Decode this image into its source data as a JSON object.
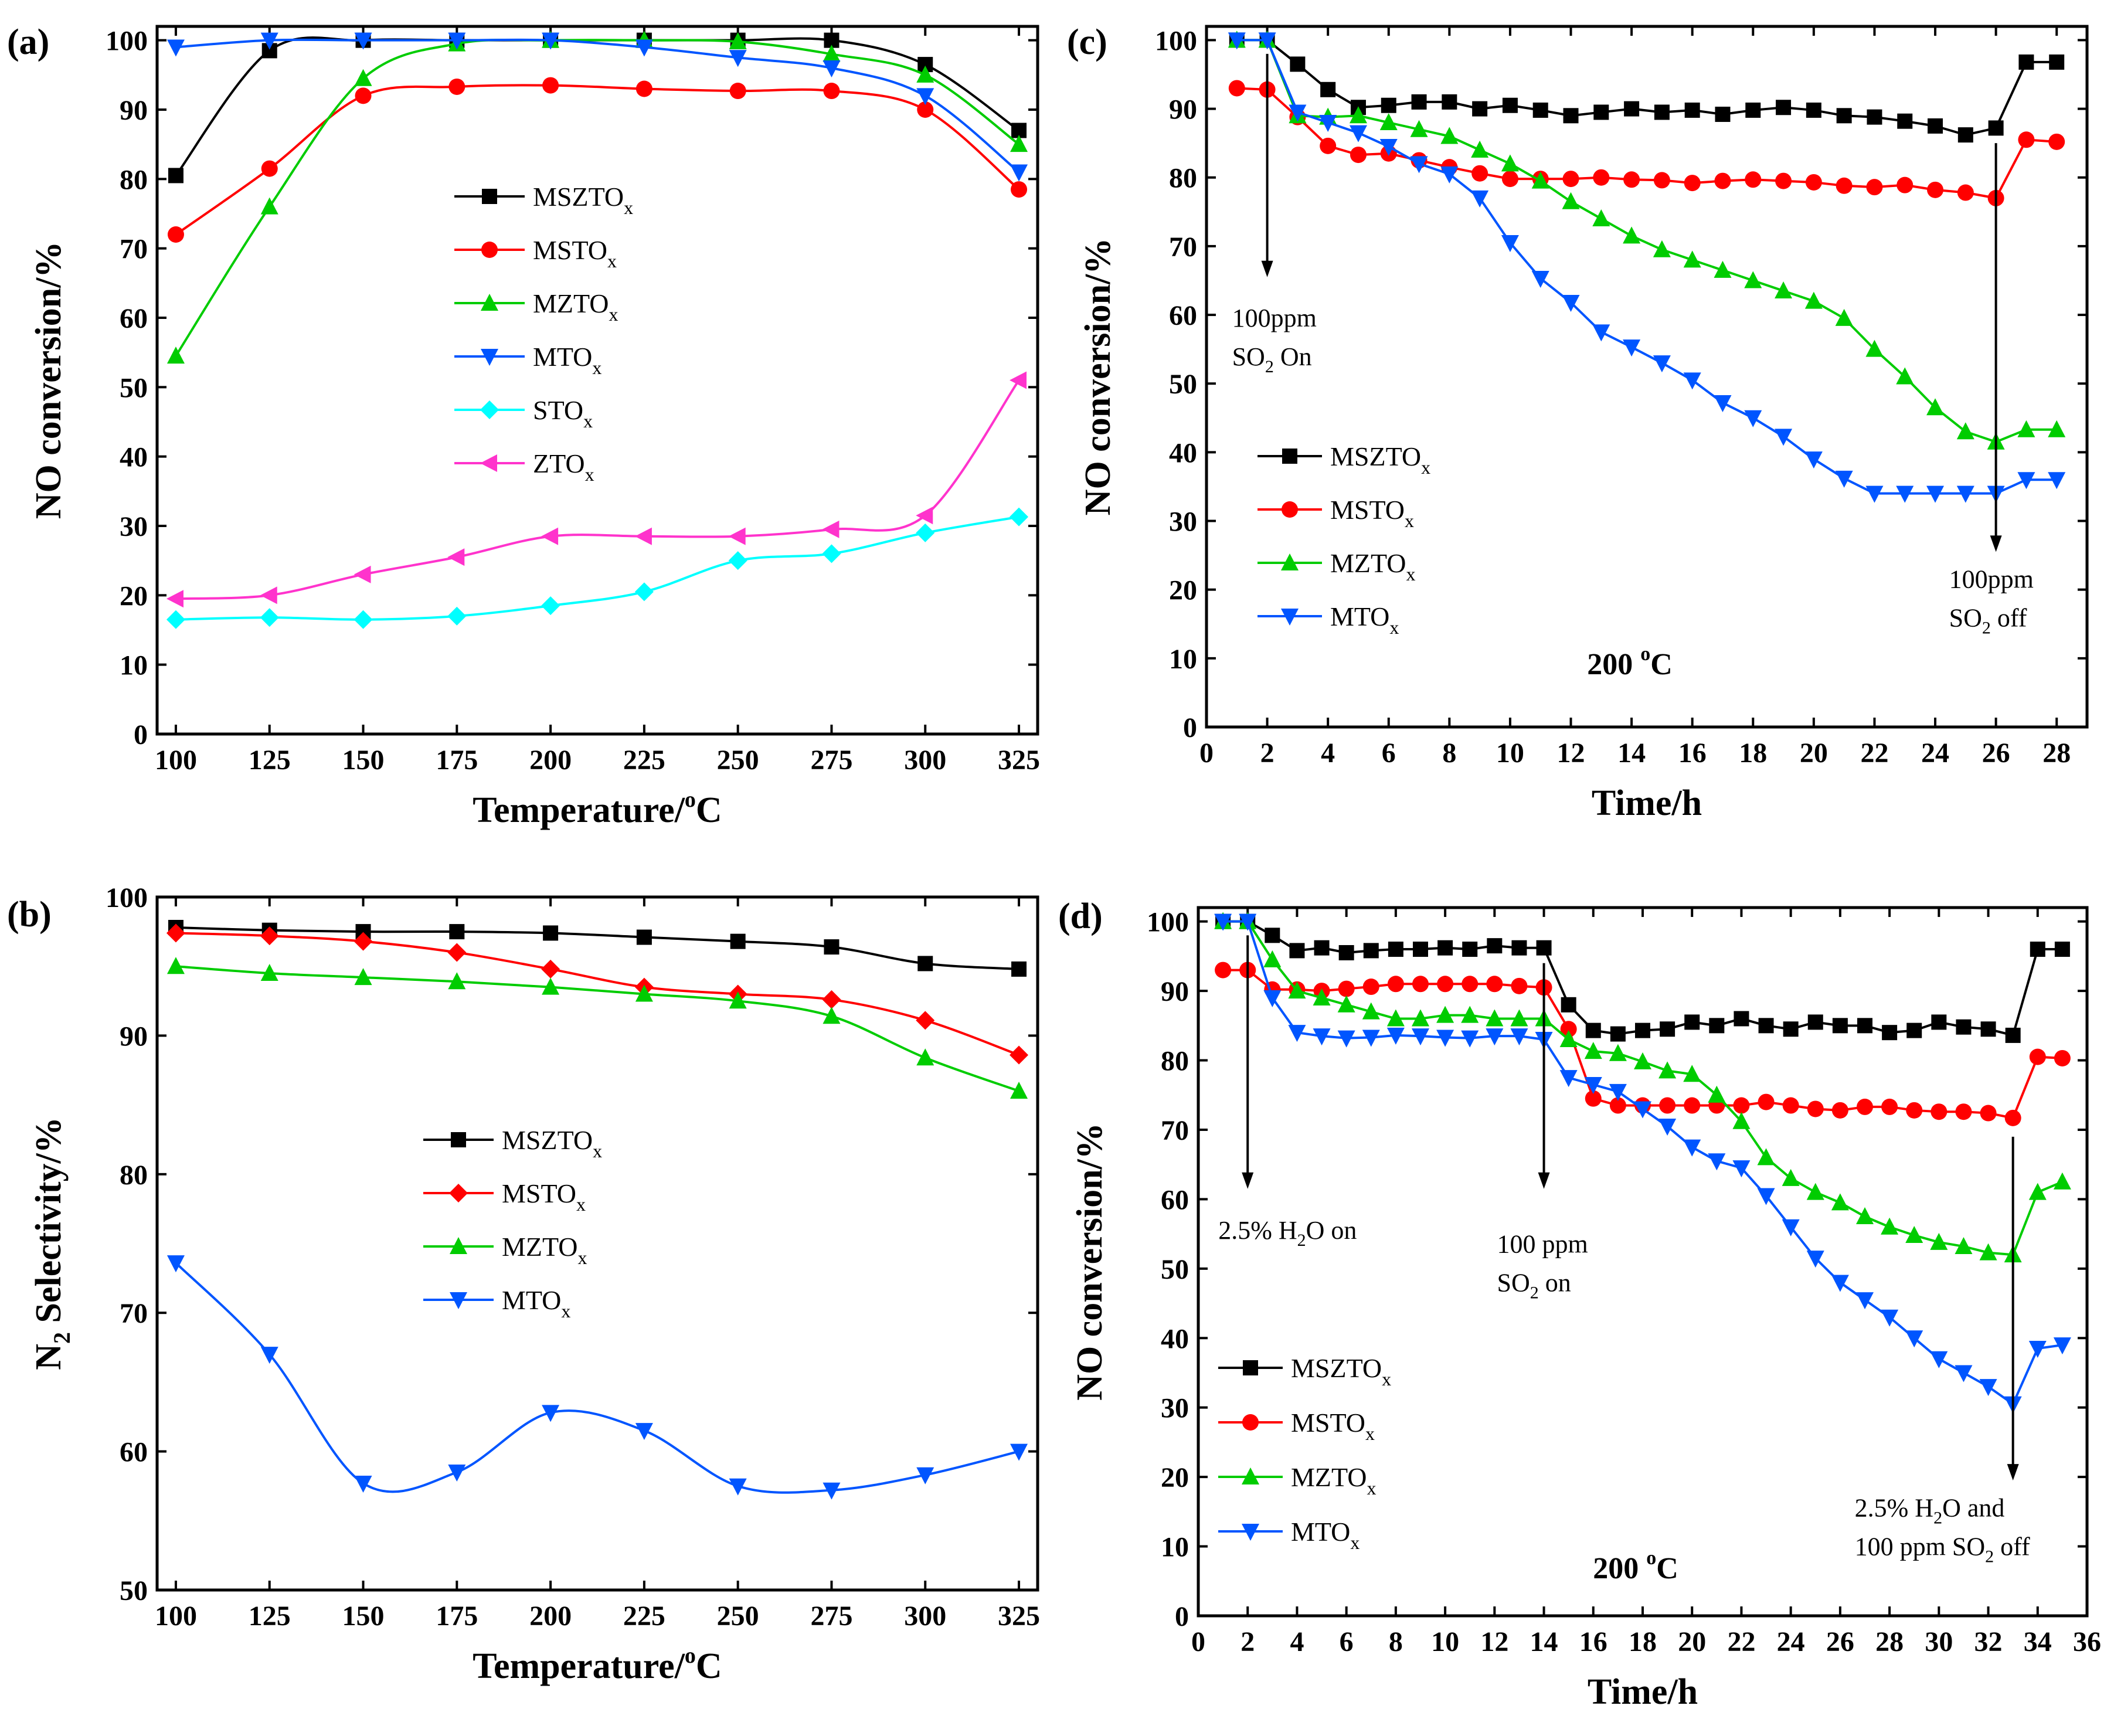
{
  "chart_data": [
    {
      "panel": "(a)",
      "type": "line",
      "xlabel": "Temperature/°C",
      "ylabel": "NO conversion/%",
      "xlim": [
        95,
        330
      ],
      "ylim": [
        0,
        102
      ],
      "xticks": [
        100,
        125,
        150,
        175,
        200,
        225,
        250,
        275,
        300,
        325
      ],
      "yticks": [
        0,
        10,
        20,
        30,
        40,
        50,
        60,
        70,
        80,
        90,
        100
      ],
      "legend": "center",
      "x": [
        100,
        125,
        150,
        175,
        200,
        225,
        250,
        275,
        300,
        325
      ],
      "series": [
        {
          "name": "MSZTO",
          "sub": "x",
          "color": "#000000",
          "marker": "square",
          "values": [
            80.5,
            98.5,
            100,
            100,
            100,
            100,
            100,
            100,
            96.5,
            87
          ]
        },
        {
          "name": "MSTO",
          "sub": "x",
          "color": "#ff0000",
          "marker": "circle",
          "values": [
            72,
            81.5,
            92,
            93.3,
            93.5,
            93,
            92.7,
            92.7,
            90,
            78.5
          ]
        },
        {
          "name": "MZTO",
          "sub": "x",
          "color": "#00cc00",
          "marker": "triangle-up",
          "values": [
            54.5,
            76,
            94.5,
            99.5,
            100,
            100,
            99.8,
            98,
            95,
            85
          ]
        },
        {
          "name": "MTO",
          "sub": "x",
          "color": "#0055ff",
          "marker": "triangle-down",
          "values": [
            99,
            100,
            100,
            100,
            100,
            99,
            97.5,
            96,
            92,
            81
          ]
        },
        {
          "name": "STO",
          "sub": "x",
          "color": "#00ffff",
          "marker": "diamond",
          "values": [
            16.5,
            16.8,
            16.5,
            17,
            18.5,
            20.5,
            25,
            26,
            29,
            31.3
          ]
        },
        {
          "name": "ZTO",
          "sub": "x",
          "color": "#ff33cc",
          "marker": "triangle-left",
          "values": [
            19.5,
            20,
            23,
            25.5,
            28.5,
            28.5,
            28.5,
            29.5,
            31.5,
            51
          ]
        }
      ]
    },
    {
      "panel": "(b)",
      "type": "line",
      "xlabel": "Temperature/°C",
      "ylabel": "N2 Selectivity/%",
      "xlim": [
        95,
        330
      ],
      "ylim": [
        50,
        100
      ],
      "xticks": [
        100,
        125,
        150,
        175,
        200,
        225,
        250,
        275,
        300,
        325
      ],
      "yticks": [
        50,
        60,
        70,
        80,
        90,
        100
      ],
      "legend": "center",
      "x": [
        100,
        125,
        150,
        175,
        200,
        225,
        250,
        275,
        300,
        325
      ],
      "series": [
        {
          "name": "MSZTO",
          "sub": "x",
          "color": "#000000",
          "marker": "square",
          "values": [
            97.8,
            97.6,
            97.5,
            97.5,
            97.4,
            97.1,
            96.8,
            96.4,
            95.2,
            94.8
          ]
        },
        {
          "name": "MSTO",
          "sub": "x",
          "color": "#ff0000",
          "marker": "diamond",
          "values": [
            97.4,
            97.2,
            96.8,
            96,
            94.8,
            93.5,
            93,
            92.6,
            91.1,
            88.6
          ]
        },
        {
          "name": "MZTO",
          "sub": "x",
          "color": "#00cc00",
          "marker": "triangle-up",
          "values": [
            95,
            94.5,
            94.2,
            93.9,
            93.5,
            93,
            92.5,
            91.4,
            88.4,
            86
          ]
        },
        {
          "name": "MTO",
          "sub": "x",
          "color": "#0055ff",
          "marker": "triangle-down",
          "values": [
            73.6,
            67,
            57.7,
            58.5,
            62.8,
            61.5,
            57.5,
            57.2,
            58.3,
            60
          ]
        }
      ]
    },
    {
      "panel": "(c)",
      "type": "line",
      "xlabel": "Time/h",
      "ylabel": "NO conversion/%",
      "xlim": [
        0,
        29
      ],
      "ylim": [
        0,
        102
      ],
      "xticks": [
        0,
        2,
        4,
        6,
        8,
        10,
        12,
        14,
        16,
        18,
        20,
        22,
        24,
        26,
        28
      ],
      "yticks": [
        0,
        10,
        20,
        30,
        40,
        50,
        60,
        70,
        80,
        90,
        100
      ],
      "legend": "lower-left",
      "x": [
        1,
        2,
        3,
        4,
        5,
        6,
        7,
        8,
        9,
        10,
        11,
        12,
        13,
        14,
        15,
        16,
        17,
        18,
        19,
        20,
        21,
        22,
        23,
        24,
        25,
        26,
        27,
        28
      ],
      "series": [
        {
          "name": "MSZTO",
          "sub": "x",
          "color": "#000000",
          "marker": "square",
          "values": [
            100,
            100,
            96.5,
            92.8,
            90.2,
            90.5,
            91,
            91,
            90,
            90.5,
            89.8,
            89,
            89.5,
            90,
            89.5,
            89.8,
            89.2,
            89.8,
            90.2,
            89.8,
            89,
            88.8,
            88.2,
            87.5,
            86.2,
            87.2,
            96.8,
            96.8
          ]
        },
        {
          "name": "MSTO",
          "sub": "x",
          "color": "#ff0000",
          "marker": "circle",
          "values": [
            93,
            92.8,
            88.8,
            84.6,
            83.3,
            83.5,
            82.5,
            81.5,
            80.6,
            79.8,
            79.8,
            79.8,
            80,
            79.7,
            79.6,
            79.2,
            79.5,
            79.7,
            79.5,
            79.3,
            78.8,
            78.6,
            78.9,
            78.2,
            77.8,
            77,
            85.5,
            85.2
          ]
        },
        {
          "name": "MZTO",
          "sub": "x",
          "color": "#00cc00",
          "marker": "triangle-up",
          "values": [
            100,
            100,
            89,
            88.8,
            89,
            88,
            87,
            86,
            84,
            82,
            79.5,
            76.5,
            74,
            71.5,
            69.5,
            68,
            66.5,
            65,
            63.5,
            62,
            59.5,
            55,
            51,
            46.5,
            43,
            41.5,
            43.3,
            43.3
          ]
        },
        {
          "name": "MTO",
          "sub": "x",
          "color": "#0055ff",
          "marker": "triangle-down",
          "values": [
            100,
            100,
            89.5,
            88,
            86.5,
            84.5,
            82,
            80.5,
            77,
            70.5,
            65.3,
            61.8,
            57.5,
            55.3,
            53,
            50.5,
            47.2,
            45,
            42.3,
            39,
            36.2,
            34,
            34,
            34,
            34,
            34,
            36,
            36
          ]
        }
      ],
      "annotations": [
        {
          "lines": [
            "100ppm",
            "SO2 On"
          ],
          "x": 2
        },
        {
          "lines": [
            "100ppm",
            "SO2 off"
          ],
          "x": 26
        }
      ],
      "temperature_label": "200 °C"
    },
    {
      "panel": "(d)",
      "type": "line",
      "xlabel": "Time/h",
      "ylabel": "NO conversion/%",
      "xlim": [
        0,
        36
      ],
      "ylim": [
        0,
        102
      ],
      "xticks": [
        0,
        2,
        4,
        6,
        8,
        10,
        12,
        14,
        16,
        18,
        20,
        22,
        24,
        26,
        28,
        30,
        32,
        34,
        36
      ],
      "yticks": [
        0,
        10,
        20,
        30,
        40,
        50,
        60,
        70,
        80,
        90,
        100
      ],
      "legend": "lower-left",
      "x": [
        1,
        2,
        3,
        4,
        5,
        6,
        7,
        8,
        9,
        10,
        11,
        12,
        13,
        14,
        15,
        16,
        17,
        18,
        19,
        20,
        21,
        22,
        23,
        24,
        25,
        26,
        27,
        28,
        29,
        30,
        31,
        32,
        33,
        34,
        35
      ],
      "series": [
        {
          "name": "MSZTO",
          "sub": "x",
          "color": "#000000",
          "marker": "square",
          "values": [
            100,
            100,
            98,
            95.8,
            96.2,
            95.5,
            95.8,
            96,
            96,
            96.2,
            96,
            96.5,
            96.2,
            96.2,
            88,
            84.3,
            83.8,
            84.3,
            84.5,
            85.5,
            85,
            86,
            85,
            84.5,
            85.5,
            85,
            85,
            84,
            84.3,
            85.5,
            84.8,
            84.5,
            83.6,
            96,
            96
          ]
        },
        {
          "name": "MSTO",
          "sub": "x",
          "color": "#ff0000",
          "marker": "circle",
          "values": [
            93,
            93,
            90.2,
            90.2,
            90,
            90.3,
            90.6,
            91,
            91,
            91,
            91,
            91,
            90.7,
            90.5,
            84.5,
            74.5,
            73.5,
            73.5,
            73.5,
            73.5,
            73.5,
            73.5,
            74,
            73.5,
            73,
            72.8,
            73.3,
            73.3,
            72.8,
            72.6,
            72.6,
            72.4,
            71.7,
            80.5,
            80.3
          ]
        },
        {
          "name": "MZTO",
          "sub": "x",
          "color": "#00cc00",
          "marker": "triangle-up",
          "values": [
            100,
            100,
            94.5,
            90,
            89,
            88,
            87,
            86,
            86,
            86.5,
            86.5,
            86,
            86,
            86,
            83,
            81.3,
            81,
            79.8,
            78.5,
            78,
            75,
            71.2,
            66,
            63,
            61,
            59.5,
            57.5,
            56,
            54.8,
            53.8,
            53.2,
            52.3,
            52,
            61,
            62.5
          ]
        },
        {
          "name": "MTO",
          "sub": "x",
          "color": "#0055ff",
          "marker": "triangle-down",
          "values": [
            100,
            100,
            89,
            84,
            83.5,
            83.2,
            83.3,
            83.6,
            83.5,
            83.3,
            83.2,
            83.5,
            83.5,
            83,
            77.5,
            76.5,
            75.5,
            73,
            70.5,
            67.5,
            65.5,
            64.5,
            60.5,
            56,
            51.5,
            48,
            45.5,
            43,
            40,
            37,
            35,
            33,
            30.5,
            38.5,
            39
          ]
        }
      ],
      "annotations": [
        {
          "lines": [
            "2.5% H2O  on"
          ],
          "x": 2
        },
        {
          "lines": [
            "100 ppm",
            "SO2 on"
          ],
          "x": 14
        },
        {
          "lines": [
            "2.5% H2O and",
            "100 ppm SO2 off"
          ],
          "x": 33
        }
      ],
      "temperature_label": "200 °C"
    }
  ]
}
